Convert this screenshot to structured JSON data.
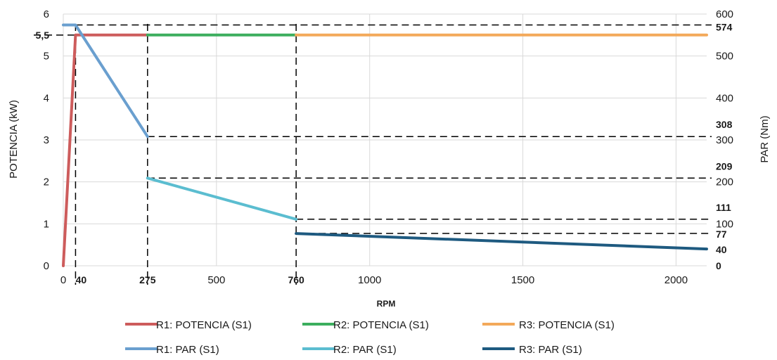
{
  "chart_data": {
    "type": "line",
    "xlabel": "RPM",
    "ylabel_left": "POTENCIA (kW)",
    "ylabel_right": "PAR (Nm)",
    "xlim": [
      0,
      2100
    ],
    "ylim_left": [
      0,
      6
    ],
    "ylim_right": [
      0,
      600
    ],
    "grid": true,
    "legend_position": "bottom",
    "x_ticks": [
      "0",
      "500",
      "1000",
      "1500",
      "2000"
    ],
    "x_ticks_bold": [
      "40",
      "275",
      "760"
    ],
    "y_left_ticks": [
      "0",
      "1",
      "2",
      "3",
      "4",
      "5",
      "6"
    ],
    "y_left_ticks_bold": [
      "5,5"
    ],
    "y_right_ticks": [
      "0",
      "100",
      "200",
      "300",
      "400",
      "500",
      "600"
    ],
    "y_right_ticks_bold": [
      "0",
      "40",
      "77",
      "111",
      "209",
      "308",
      "574"
    ],
    "series": [
      {
        "name": "R1: POTENCIA (S1)",
        "axis": "left",
        "color": "#cd5c5c",
        "x": [
          0,
          40,
          275
        ],
        "y": [
          0,
          5.5,
          5.5
        ]
      },
      {
        "name": "R2: POTENCIA (S1)",
        "axis": "left",
        "color": "#3cae5e",
        "x": [
          275,
          760
        ],
        "y": [
          5.5,
          5.5
        ]
      },
      {
        "name": "R3: POTENCIA (S1)",
        "axis": "left",
        "color": "#f3a95a",
        "x": [
          760,
          2100
        ],
        "y": [
          5.5,
          5.5
        ]
      },
      {
        "name": "R1: PAR (S1)",
        "axis": "right",
        "color": "#6a9fcf",
        "x": [
          0,
          40,
          275
        ],
        "y": [
          574,
          574,
          308
        ]
      },
      {
        "name": "R2: PAR (S1)",
        "axis": "right",
        "color": "#5bbdd0",
        "x": [
          275,
          760
        ],
        "y": [
          209,
          111
        ]
      },
      {
        "name": "R3: PAR (S1)",
        "axis": "right",
        "color": "#1e5a80",
        "x": [
          760,
          2100
        ],
        "y": [
          77,
          40
        ]
      }
    ],
    "reference_lines": {
      "vertical_rpm": [
        40,
        275,
        760
      ],
      "horizontal_left": [
        5.5
      ],
      "horizontal_right": [
        574,
        308,
        209,
        111,
        77
      ]
    }
  }
}
